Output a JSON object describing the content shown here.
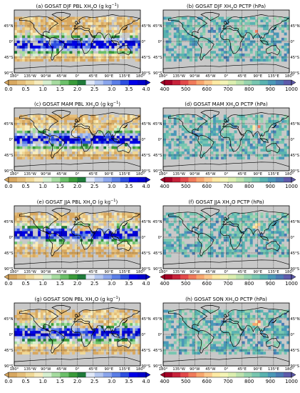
{
  "chart_data": [
    {
      "type": "heatmap",
      "title": "(a) GOSAT DJF PBL XH",
      "title_sub": "2",
      "title_tail": "O (g kg",
      "title_sup": "−1",
      "title_end": ")",
      "variable": "PBL",
      "season": "DJF"
    },
    {
      "type": "heatmap",
      "title": "(b) GOSAT DJF XH",
      "title_sub": "2",
      "title_tail": "O PCTP (hPa)",
      "title_sup": "",
      "title_end": "",
      "variable": "PCTP",
      "season": "DJF"
    },
    {
      "type": "heatmap",
      "title": "(c) GOSAT MAM PBL XH",
      "title_sub": "2",
      "title_tail": "O (g kg",
      "title_sup": "−1",
      "title_end": ")",
      "variable": "PBL",
      "season": "MAM"
    },
    {
      "type": "heatmap",
      "title": "(d) GOSAT MAM XH",
      "title_sub": "2",
      "title_tail": "O PCTP (hPa)",
      "title_sup": "",
      "title_end": "",
      "variable": "PCTP",
      "season": "MAM"
    },
    {
      "type": "heatmap",
      "title": "(e) GOSAT JJA PBL XH",
      "title_sub": "2",
      "title_tail": "O (g kg",
      "title_sup": "−1",
      "title_end": ")",
      "variable": "PBL",
      "season": "JJA"
    },
    {
      "type": "heatmap",
      "title": "(f) GOSAT JJA XH",
      "title_sub": "2",
      "title_tail": "O PCTP (hPa)",
      "title_sup": "",
      "title_end": "",
      "variable": "PCTP",
      "season": "JJA"
    },
    {
      "type": "heatmap",
      "title": "(g) GOSAT SON PBL XH",
      "title_sub": "2",
      "title_tail": "O (g kg",
      "title_sup": "−1",
      "title_end": ")",
      "variable": "PBL",
      "season": "SON"
    },
    {
      "type": "heatmap",
      "title": "(h) GOSAT SON XH",
      "title_sub": "2",
      "title_tail": "O PCTP (hPa)",
      "title_sup": "",
      "title_end": "",
      "variable": "PCTP",
      "season": "SON"
    }
  ],
  "axes": {
    "lon_ticks": [
      "180°",
      "135°W",
      "90°W",
      "45°W",
      "0°",
      "45°E",
      "90°E",
      "135°E",
      "180°"
    ],
    "lon_values": [
      -180,
      -135,
      -90,
      -45,
      0,
      45,
      90,
      135,
      180
    ],
    "lat_ticks": [
      "45°N",
      "0°",
      "45°S",
      "90°S"
    ],
    "lat_values": [
      45,
      0,
      -45,
      -90
    ],
    "lat_range": [
      -90,
      90
    ],
    "lon_range": [
      -180,
      180
    ]
  },
  "colorbars": {
    "pbl": {
      "ticks": [
        "0.0",
        "0.5",
        "1.0",
        "1.5",
        "2.0",
        "2.5",
        "3.0",
        "3.5",
        "4.0"
      ],
      "min": 0,
      "max": 4,
      "colors": [
        "#d8a860",
        "#e6bf7a",
        "#f0d896",
        "#f7ecbe",
        "#d6efcf",
        "#a6dba0",
        "#6cc06a",
        "#3a9b3a",
        "#1f7a3a",
        "#e0e8f7",
        "#b4c7f0",
        "#8aa5ec",
        "#5a7ee6",
        "#2d4fe0",
        "#0000e8",
        "#0000cc"
      ]
    },
    "pctp": {
      "ticks": [
        "400",
        "500",
        "600",
        "700",
        "800",
        "900",
        "1000"
      ],
      "min": 400,
      "max": 1000,
      "colors": [
        "#a50026",
        "#c8233a",
        "#e34a4a",
        "#f07a5a",
        "#f8a66e",
        "#fcc98c",
        "#feeaa4",
        "#f4f4b6",
        "#dcefb0",
        "#bde3ad",
        "#98d4ae",
        "#78c6b0",
        "#59b3b0",
        "#4a98b8",
        "#4b7bb4",
        "#5e5bab"
      ]
    }
  },
  "colors": {
    "land_gray": "#c8c8c8",
    "coast": "#000000",
    "grid": "#000000"
  }
}
